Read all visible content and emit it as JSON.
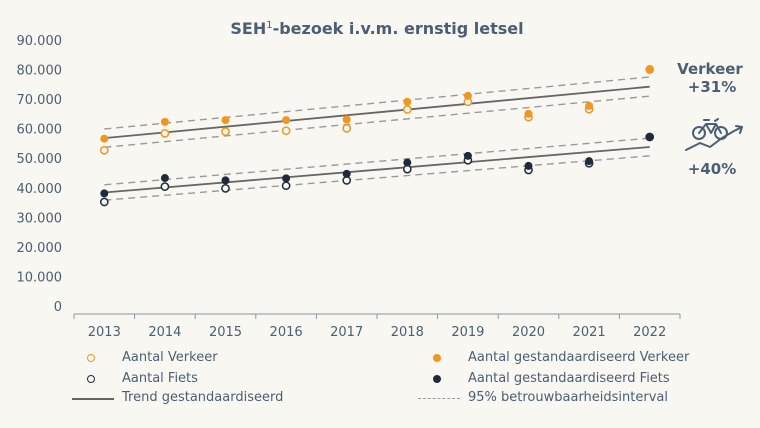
{
  "colors": {
    "verkeer": "#ef9722",
    "fiets": "#1f2b3b",
    "trend": "#666666",
    "interval": "#9a9a9a",
    "text": "#4a5f73"
  },
  "chart_data": {
    "type": "scatter",
    "title": "SEH",
    "title_sup": "1",
    "title_rest": "-bezoek i.v.m. ernstig letsel",
    "x": [
      "2013",
      "2014",
      "2015",
      "2016",
      "2017",
      "2018",
      "2019",
      "2020",
      "2021",
      "2022"
    ],
    "ylim": [
      0,
      90000
    ],
    "yticks": [
      "0",
      "10.000",
      "20.000",
      "30.000",
      "40.000",
      "50.000",
      "60.000",
      "70.000",
      "80.000",
      "90.000"
    ],
    "ytick_values": [
      0,
      10000,
      20000,
      30000,
      40000,
      50000,
      60000,
      70000,
      80000,
      90000
    ],
    "grid": false,
    "legend_position": "bottom",
    "series": [
      {
        "name": "Aantal Verkeer",
        "style": "open",
        "color": "#ef9722",
        "values": [
          52700,
          58400,
          59000,
          59300,
          60100,
          66500,
          69100,
          63900,
          66600,
          80000
        ]
      },
      {
        "name": "Aantal gestandaardiseerd Verkeer",
        "style": "filled",
        "color": "#ef9722",
        "values": [
          56600,
          62300,
          62900,
          62900,
          63100,
          69100,
          71100,
          65000,
          67700,
          80200
        ]
      },
      {
        "name": "Aantal Fiets",
        "style": "open",
        "color": "#1f2b3b",
        "values": [
          35200,
          40400,
          39800,
          40700,
          42500,
          46300,
          49300,
          46000,
          48300,
          57200
        ]
      },
      {
        "name": "Aantal gestandaardiseerd Fiets",
        "style": "filled",
        "color": "#1f2b3b",
        "values": [
          38100,
          43300,
          42500,
          43200,
          44700,
          48500,
          50800,
          47400,
          49000,
          57100
        ]
      }
    ],
    "trend_lines": [
      {
        "group": "verkeer",
        "start": 56800,
        "end": 74200
      },
      {
        "group": "fiets",
        "start": 38400,
        "end": 53800
      }
    ],
    "interval_lines": [
      {
        "group": "verkeer",
        "upper": [
          59900,
          77500
        ],
        "lower": [
          53700,
          71000
        ]
      },
      {
        "group": "fiets",
        "upper": [
          41000,
          56800
        ],
        "lower": [
          35800,
          50800
        ]
      }
    ],
    "annotations": {
      "verkeer_label": "Verkeer",
      "verkeer_change": "+31%",
      "fiets_change": "+40%"
    },
    "legend": {
      "open_verkeer": "Aantal Verkeer",
      "filled_verkeer": "Aantal gestandaardiseerd Verkeer",
      "open_fiets": "Aantal Fiets",
      "filled_fiets": "Aantal gestandaardiseerd Fiets",
      "trend": "Trend gestandaardiseerd",
      "interval": "95% betrouwbaarheidsinterval"
    },
    "icons": [
      "bicycle-icon",
      "upward-trend-arrow-icon"
    ]
  }
}
